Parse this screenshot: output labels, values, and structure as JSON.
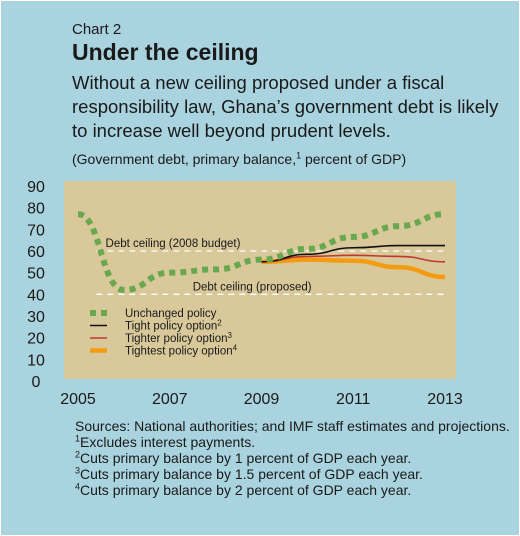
{
  "header": {
    "chart_number": "Chart 2",
    "title": "Under the ceiling",
    "subtitle": "Without a new ceiling proposed under a fiscal responsibility law, Ghana’s government debt is likely to increase well beyond prudent levels.",
    "units_pre": "(Government debt, primary balance,",
    "units_sup": "1",
    "units_post": " percent of GDP)"
  },
  "colors": {
    "background": "#a9d3de",
    "plot_area": "#d8c89a",
    "unchanged": "#6aa84f",
    "tight": "#111111",
    "tighter": "#c0392b",
    "tightest": "#f39c12"
  },
  "chart_data": {
    "type": "line",
    "x_ticks": [
      "2005",
      "2007",
      "2009",
      "2011",
      "2013"
    ],
    "y_ticks": [
      "0",
      "10",
      "20",
      "30",
      "40",
      "50",
      "60",
      "70",
      "80",
      "90"
    ],
    "xlim": [
      2005,
      2013
    ],
    "ylim": [
      0,
      90
    ],
    "grid": false,
    "legend_position": "bottom-left",
    "reference_lines": [
      {
        "label": "Debt ceiling (2008 budget)",
        "y": 60
      },
      {
        "label": "Debt ceiling (proposed)",
        "y": 40
      }
    ],
    "series": [
      {
        "name": "Unchanged policy",
        "sup": "",
        "style": "dotted",
        "color": "#6aa84f",
        "x": [
          2005,
          2006,
          2007,
          2008,
          2009,
          2010,
          2011,
          2012,
          2013
        ],
        "y": [
          77,
          42,
          50,
          51.5,
          56,
          61,
          66.5,
          71.5,
          77
        ]
      },
      {
        "name": "Tight policy option",
        "sup": "2",
        "style": "solid",
        "color": "#111111",
        "x": [
          2009,
          2010,
          2011,
          2012,
          2013
        ],
        "y": [
          55,
          58.5,
          61.5,
          62.5,
          62.5
        ]
      },
      {
        "name": "Tighter policy option",
        "sup": "3",
        "style": "solid",
        "color": "#c0392b",
        "x": [
          2009,
          2010,
          2011,
          2012,
          2013
        ],
        "y": [
          55,
          57.5,
          58,
          57.5,
          55
        ]
      },
      {
        "name": "Tightest policy option",
        "sup": "4",
        "style": "thick",
        "color": "#f39c12",
        "x": [
          2009,
          2010,
          2011,
          2012,
          2013
        ],
        "y": [
          55,
          56,
          55.5,
          52.5,
          48
        ]
      }
    ]
  },
  "notes": {
    "sources": "Sources: National authorities; and IMF staff estimates and projections.",
    "footnotes": [
      {
        "num": "1",
        "text": "Excludes interest payments."
      },
      {
        "num": "2",
        "text": "Cuts primary balance by 1 percent of GDP each year."
      },
      {
        "num": "3",
        "text": "Cuts primary balance by 1.5 percent of GDP each year."
      },
      {
        "num": "4",
        "text": "Cuts primary balance by 2 percent of GDP each year."
      }
    ]
  }
}
